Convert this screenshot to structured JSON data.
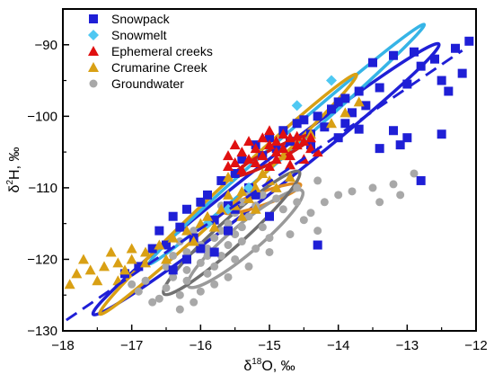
{
  "chart_data": {
    "type": "scatter",
    "xlabel_base": "δ",
    "xlabel_sup": "18",
    "xlabel_rest": "O, ‰",
    "ylabel_base": "δ",
    "ylabel_sup": "2",
    "ylabel_rest": "H, ‰",
    "xlim": [
      -18,
      -12
    ],
    "ylim": [
      -130,
      -85
    ],
    "x_ticks": [
      -18,
      -17,
      -16,
      -15,
      -14,
      -13,
      -12
    ],
    "x_tick_labels": [
      "−18",
      "−17",
      "−16",
      "−15",
      "−14",
      "−13",
      "−12"
    ],
    "y_ticks": [
      -130,
      -120,
      -110,
      -100,
      -90
    ],
    "y_tick_labels": [
      "−130",
      "−120",
      "−110",
      "−100",
      "−90"
    ],
    "grid": false,
    "legend_position": "top-left",
    "series": [
      {
        "name": "Snowpack",
        "marker": "square",
        "color": "#1f1fd6",
        "points": [
          [
            -12.1,
            -89.5
          ],
          [
            -12.3,
            -90.5
          ],
          [
            -12.6,
            -92
          ],
          [
            -12.9,
            -91
          ],
          [
            -13.2,
            -91.5
          ],
          [
            -13.5,
            -92.5
          ],
          [
            -12.8,
            -93
          ],
          [
            -12.2,
            -94
          ],
          [
            -12.5,
            -95
          ],
          [
            -13.0,
            -95.5
          ],
          [
            -13.4,
            -96
          ],
          [
            -13.7,
            -96.5
          ],
          [
            -13.9,
            -97.5
          ],
          [
            -14.0,
            -98
          ],
          [
            -13.6,
            -98.5
          ],
          [
            -13.8,
            -99.5
          ],
          [
            -14.1,
            -99
          ],
          [
            -14.3,
            -100
          ],
          [
            -14.5,
            -100.5
          ],
          [
            -13.9,
            -101
          ],
          [
            -14.2,
            -101.5
          ],
          [
            -14.6,
            -101
          ],
          [
            -14.8,
            -102
          ],
          [
            -14.4,
            -102.5
          ],
          [
            -14.0,
            -103
          ],
          [
            -13.7,
            -101.8
          ],
          [
            -14.7,
            -103.5
          ],
          [
            -15.0,
            -103
          ],
          [
            -15.2,
            -104
          ],
          [
            -14.9,
            -104.5
          ],
          [
            -14.4,
            -104
          ],
          [
            -15.1,
            -105.5
          ],
          [
            -15.4,
            -106
          ],
          [
            -13.2,
            -102
          ],
          [
            -13.0,
            -103
          ],
          [
            -13.4,
            -104.5
          ],
          [
            -15.5,
            -108
          ],
          [
            -15.7,
            -109
          ],
          [
            -15.3,
            -110
          ],
          [
            -15.9,
            -111
          ],
          [
            -16.0,
            -112
          ],
          [
            -15.6,
            -112.5
          ],
          [
            -16.2,
            -113
          ],
          [
            -16.4,
            -114
          ],
          [
            -15.8,
            -114.5
          ],
          [
            -16.3,
            -115.5
          ],
          [
            -16.6,
            -116
          ],
          [
            -16.1,
            -117
          ],
          [
            -16.5,
            -118
          ],
          [
            -16.7,
            -118.5
          ],
          [
            -16.2,
            -120
          ],
          [
            -15.8,
            -119
          ],
          [
            -16.9,
            -121
          ],
          [
            -17.1,
            -122
          ],
          [
            -16.4,
            -121.5
          ],
          [
            -14.3,
            -118
          ],
          [
            -12.8,
            -109
          ],
          [
            -12.5,
            -102.5
          ],
          [
            -13.1,
            -104
          ],
          [
            -12.4,
            -96.5
          ],
          [
            -15.2,
            -111
          ],
          [
            -15.5,
            -113
          ],
          [
            -15.0,
            -114
          ],
          [
            -15.6,
            -116
          ],
          [
            -16.0,
            -118.5
          ]
        ]
      },
      {
        "name": "Snowmelt",
        "marker": "diamond",
        "color": "#4fc8f2",
        "points": [
          [
            -14.1,
            -95
          ],
          [
            -14.6,
            -98.5
          ],
          [
            -15.3,
            -110
          ],
          [
            -15.6,
            -113
          ],
          [
            -15.9,
            -115
          ]
        ]
      },
      {
        "name": "Ephemeral creeks",
        "marker": "triangle",
        "color": "#e01010",
        "points": [
          [
            -15.6,
            -105.5
          ],
          [
            -15.5,
            -106.5
          ],
          [
            -15.4,
            -105
          ],
          [
            -15.3,
            -106
          ],
          [
            -15.2,
            -104.5
          ],
          [
            -15.1,
            -105.5
          ],
          [
            -15.0,
            -104
          ],
          [
            -14.9,
            -103.5
          ],
          [
            -14.8,
            -104.5
          ],
          [
            -14.7,
            -103
          ],
          [
            -14.6,
            -104
          ],
          [
            -14.5,
            -103.5
          ],
          [
            -14.4,
            -104.5
          ],
          [
            -14.3,
            -105
          ],
          [
            -14.5,
            -106
          ],
          [
            -14.7,
            -105.5
          ],
          [
            -14.9,
            -106
          ],
          [
            -15.0,
            -107
          ],
          [
            -15.2,
            -106.5
          ],
          [
            -15.4,
            -107.5
          ],
          [
            -15.6,
            -107
          ],
          [
            -14.8,
            -102.5
          ],
          [
            -15.0,
            -102
          ],
          [
            -14.6,
            -102.8
          ],
          [
            -14.4,
            -103
          ],
          [
            -15.3,
            -103.5
          ],
          [
            -15.1,
            -103
          ],
          [
            -14.9,
            -105
          ],
          [
            -14.7,
            -106.8
          ],
          [
            -15.5,
            -104
          ]
        ]
      },
      {
        "name": "Crumarine Creek",
        "marker": "triangle",
        "color": "#d9a014",
        "points": [
          [
            -13.7,
            -98
          ],
          [
            -13.9,
            -99.5
          ],
          [
            -14.1,
            -101
          ],
          [
            -14.4,
            -102.5
          ],
          [
            -14.6,
            -104
          ],
          [
            -14.8,
            -105.5
          ],
          [
            -15.0,
            -107
          ],
          [
            -15.1,
            -108
          ],
          [
            -15.0,
            -109
          ],
          [
            -15.2,
            -110
          ],
          [
            -15.4,
            -110.5
          ],
          [
            -15.6,
            -111
          ],
          [
            -15.3,
            -111.5
          ],
          [
            -15.5,
            -112.5
          ],
          [
            -15.7,
            -113
          ],
          [
            -15.2,
            -113
          ],
          [
            -15.9,
            -114
          ],
          [
            -16.0,
            -115
          ],
          [
            -15.8,
            -115.5
          ],
          [
            -16.2,
            -116
          ],
          [
            -16.4,
            -117
          ],
          [
            -16.1,
            -117.5
          ],
          [
            -16.6,
            -118
          ],
          [
            -16.8,
            -119
          ],
          [
            -17.0,
            -120
          ],
          [
            -17.2,
            -120.5
          ],
          [
            -17.4,
            -121
          ],
          [
            -17.6,
            -121.5
          ],
          [
            -17.8,
            -122
          ],
          [
            -17.3,
            -119
          ],
          [
            -17.1,
            -121.5
          ],
          [
            -17.5,
            -123
          ],
          [
            -17.9,
            -123.5
          ],
          [
            -17.7,
            -120
          ],
          [
            -17.2,
            -123
          ],
          [
            -17.0,
            -118.5
          ],
          [
            -16.8,
            -120.5
          ],
          [
            -16.5,
            -120
          ],
          [
            -14.9,
            -110
          ],
          [
            -14.7,
            -108.5
          ],
          [
            -15.6,
            -108.5
          ],
          [
            -15.4,
            -114
          ]
        ]
      },
      {
        "name": "Groundwater",
        "marker": "circle",
        "color": "#a8a8a8",
        "points": [
          [
            -16.3,
            -125
          ],
          [
            -16.1,
            -126
          ],
          [
            -16.5,
            -124
          ],
          [
            -16.0,
            -124.5
          ],
          [
            -16.4,
            -122.5
          ],
          [
            -16.2,
            -123
          ],
          [
            -16.6,
            -125.5
          ],
          [
            -16.3,
            -127
          ],
          [
            -16.7,
            -126
          ],
          [
            -15.9,
            -122
          ],
          [
            -15.8,
            -121
          ],
          [
            -16.0,
            -120.5
          ],
          [
            -15.7,
            -119.5
          ],
          [
            -15.9,
            -118.5
          ],
          [
            -15.6,
            -118
          ],
          [
            -15.8,
            -117
          ],
          [
            -15.5,
            -116.5
          ],
          [
            -15.7,
            -116
          ],
          [
            -15.4,
            -115.5
          ],
          [
            -15.6,
            -115
          ],
          [
            -15.3,
            -114
          ],
          [
            -15.5,
            -113.5
          ],
          [
            -15.2,
            -112.5
          ],
          [
            -15.4,
            -112
          ],
          [
            -15.1,
            -111
          ],
          [
            -15.3,
            -110.5
          ],
          [
            -16.1,
            -116
          ],
          [
            -16.3,
            -117.5
          ],
          [
            -16.0,
            -118
          ],
          [
            -15.9,
            -119.5
          ],
          [
            -16.2,
            -119
          ],
          [
            -15.5,
            -120
          ],
          [
            -15.2,
            -118.5
          ],
          [
            -15.0,
            -117
          ],
          [
            -15.1,
            -115.5
          ],
          [
            -14.8,
            -113
          ],
          [
            -14.9,
            -111.5
          ],
          [
            -14.6,
            -112
          ],
          [
            -14.4,
            -113.5
          ],
          [
            -14.2,
            -112
          ],
          [
            -14.0,
            -111
          ],
          [
            -13.8,
            -110.5
          ],
          [
            -13.5,
            -110
          ],
          [
            -13.2,
            -109.5
          ],
          [
            -12.9,
            -108
          ],
          [
            -13.1,
            -111
          ],
          [
            -13.4,
            -112
          ],
          [
            -14.3,
            -116
          ],
          [
            -14.5,
            -114.5
          ],
          [
            -14.7,
            -116.5
          ],
          [
            -15.0,
            -119
          ],
          [
            -15.3,
            -121
          ],
          [
            -15.6,
            -122.5
          ],
          [
            -16.5,
            -121
          ],
          [
            -16.8,
            -123
          ],
          [
            -17.0,
            -123.5
          ],
          [
            -16.9,
            -124.5
          ],
          [
            -15.8,
            -123.5
          ],
          [
            -14.6,
            -110
          ],
          [
            -14.3,
            -109
          ],
          [
            -15.7,
            -112.5
          ],
          [
            -16.4,
            -119.5
          ],
          [
            -15.4,
            -117.5
          ],
          [
            -16.2,
            -121.5
          ]
        ]
      }
    ],
    "ellipses": [
      {
        "color": "#1f1fd6",
        "cx": -15.05,
        "cy": -108.8,
        "rx": 3.25,
        "ry": 3.9,
        "angle": 38
      },
      {
        "color": "#36b4e6",
        "cx": -14.75,
        "cy": -103.9,
        "rx": 2.7,
        "ry": 2.2,
        "angle": 41
      },
      {
        "color": "#d9a014",
        "cx": -15.6,
        "cy": -110.9,
        "rx": 2.6,
        "ry": 2.8,
        "angle": 43
      },
      {
        "color": "#d01818",
        "cx": -14.95,
        "cy": -105.5,
        "rx": 0.65,
        "ry": 1.7,
        "angle": 27
      },
      {
        "color": "#e08a20",
        "cx": -15.1,
        "cy": -111.5,
        "rx": 0.6,
        "ry": 1.8,
        "angle": 20
      },
      {
        "color": "#9a9a9a",
        "cx": -15.35,
        "cy": -117.1,
        "rx": 1.1,
        "ry": 4.0,
        "angle": 40
      },
      {
        "color": "#707070",
        "cx": -15.55,
        "cy": -116.3,
        "rx": 1.35,
        "ry": 3.7,
        "angle": 42
      }
    ],
    "regression_line": {
      "color": "#1f1fd6",
      "x1": -17.95,
      "y1": -128.5,
      "x2": -12.2,
      "y2": -90.8
    }
  }
}
